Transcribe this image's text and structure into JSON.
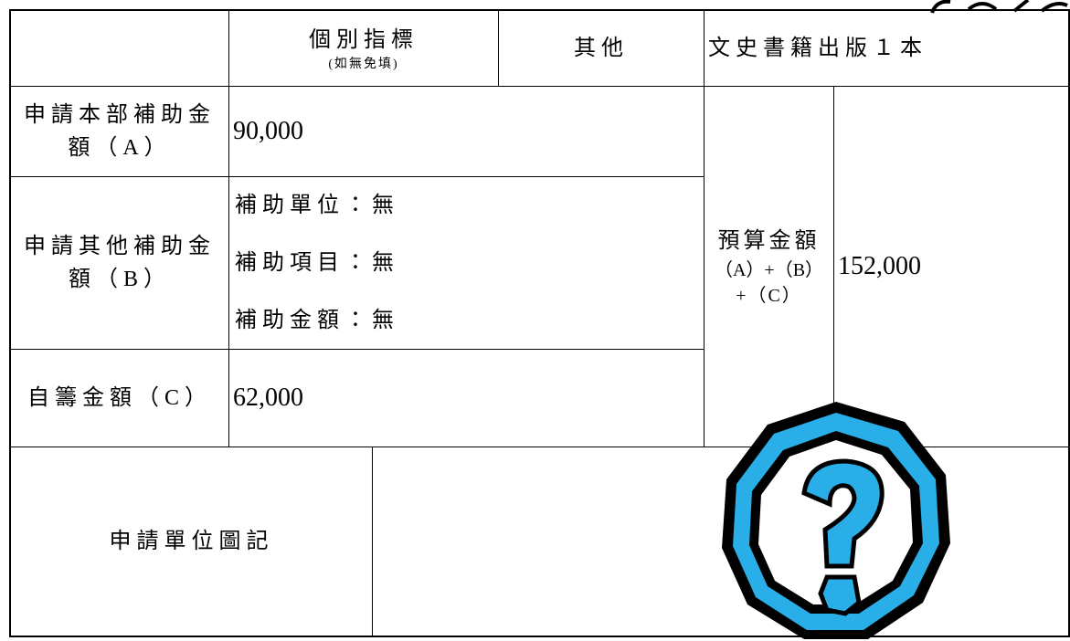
{
  "header": {
    "indicator": "個別指標",
    "indicator_note": "(如無免填)",
    "other": "其他",
    "other_value": "文史書籍出版１本"
  },
  "rows": [
    {
      "label_lines": [
        "申請本部補助金",
        "額（A）"
      ],
      "value": "90,000"
    },
    {
      "label_lines": [
        "申請其他補助金",
        "額（B）"
      ],
      "details": [
        "補助單位：無",
        "補助項目：無",
        "補助金額：無"
      ]
    },
    {
      "label_lines": [
        "自籌金額（C）"
      ],
      "value": "62,000"
    }
  ],
  "budget": {
    "label_lines": [
      "預算金額",
      "（A）+（B）",
      "+（C）"
    ],
    "value": "152,000"
  },
  "seal": {
    "label": "申請單位圖記"
  }
}
